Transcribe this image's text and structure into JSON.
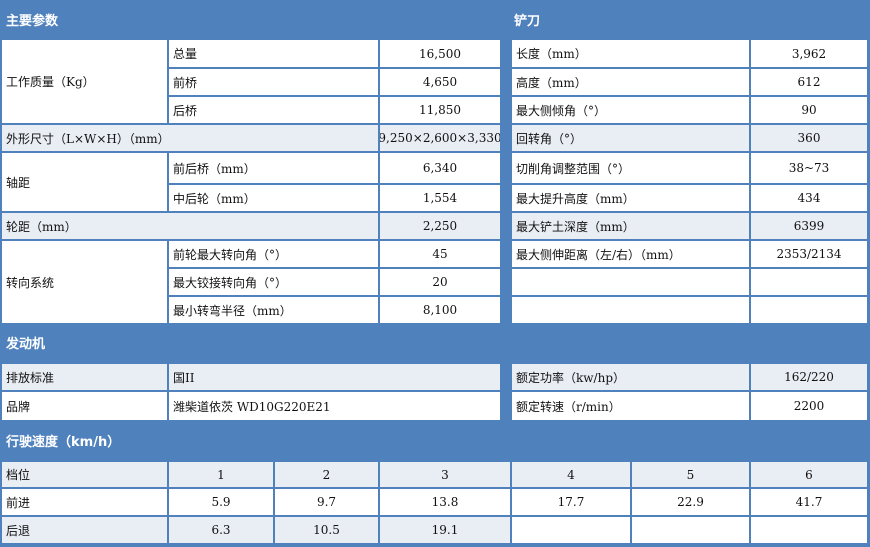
{
  "main_params": {
    "title": "主要参数",
    "weight": {
      "label": "工作质量（Kg）",
      "items": [
        {
          "label": "总量",
          "value": "16,500"
        },
        {
          "label": "前桥",
          "value": "4,650"
        },
        {
          "label": "后桥",
          "value": "11,850"
        }
      ]
    },
    "dimensions": {
      "label": "外形尺寸（L×W×H）（mm）",
      "value": "9,250×2,600×3,330"
    },
    "wheelbase": {
      "label": "轴距",
      "items": [
        {
          "label": "前后桥（mm）",
          "value": "6,340"
        },
        {
          "label": "中后轮（mm）",
          "value": "1,554"
        }
      ]
    },
    "track": {
      "label": "轮距（mm）",
      "value": "2,250"
    },
    "steering": {
      "label": "转向系统",
      "items": [
        {
          "label": "前轮最大转向角（°）",
          "value": "45"
        },
        {
          "label": "最大铰接转向角（°）",
          "value": "20"
        },
        {
          "label": "最小转弯半径（mm）",
          "value": "8,100"
        }
      ]
    }
  },
  "blade": {
    "title": "铲刀",
    "items": [
      {
        "label": "长度（mm）",
        "value": "3,962"
      },
      {
        "label": "高度（mm）",
        "value": "612"
      },
      {
        "label": "最大侧倾角（°）",
        "value": "90"
      },
      {
        "label": "回转角（°）",
        "value": "360"
      },
      {
        "label": "切削角调整范围（°）",
        "value": "38~73"
      },
      {
        "label": "最大提升高度（mm）",
        "value": "434"
      },
      {
        "label": "最大铲土深度（mm）",
        "value": "6399"
      },
      {
        "label": "最大侧伸距离（左/右）（mm）",
        "value": "2353/2134"
      }
    ]
  },
  "engine": {
    "title": "发动机",
    "emission": {
      "label": "排放标准",
      "value": "国II"
    },
    "brand": {
      "label": "品牌",
      "value": "潍柴道依茨 WD10G220E21"
    },
    "power": {
      "label": "额定功率（kw/hp）",
      "value": "162/220"
    },
    "speed": {
      "label": "额定转速（r/min）",
      "value": "2200"
    }
  },
  "travel_speed": {
    "title": "行驶速度（km/h）",
    "gear_label": "档位",
    "gears": [
      "1",
      "2",
      "3",
      "4",
      "5",
      "6"
    ],
    "forward_label": "前进",
    "forward": [
      "5.9",
      "9.7",
      "13.8",
      "17.7",
      "22.9",
      "41.7"
    ],
    "reverse_label": "后退",
    "reverse": [
      "6.3",
      "10.5",
      "19.1",
      "",
      "",
      ""
    ]
  },
  "colors": {
    "header": "#4F81BD",
    "shaded": "#E9EDF4"
  }
}
